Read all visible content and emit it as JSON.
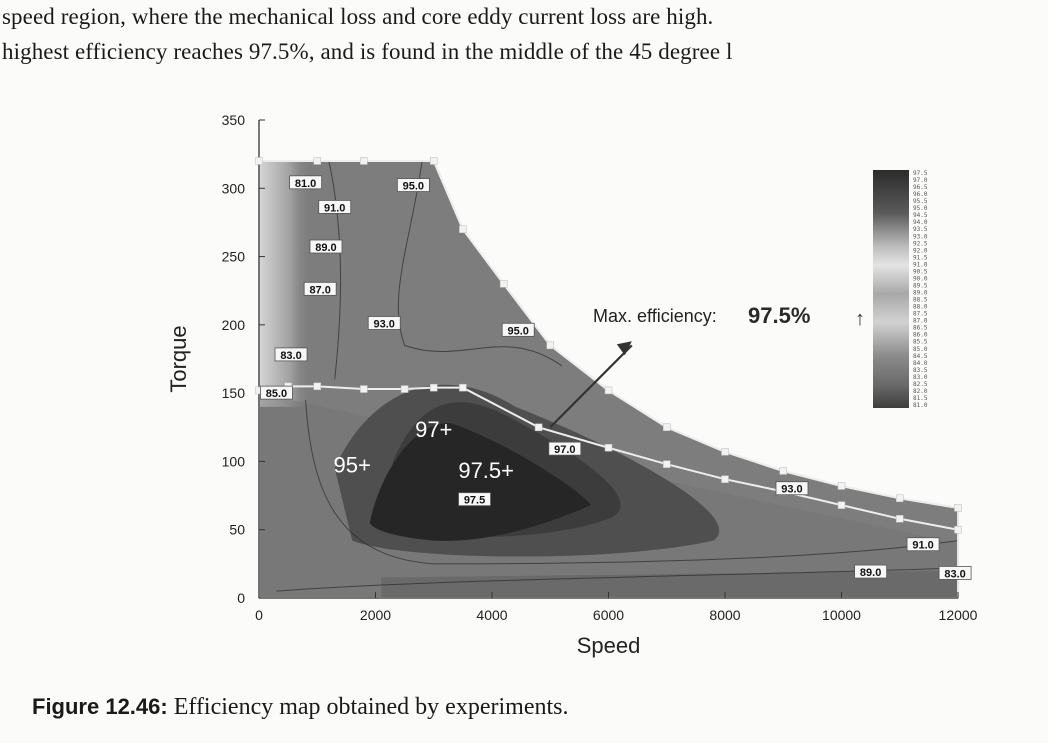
{
  "text": {
    "line1": "speed region, where the mechanical loss and core eddy current loss are high.",
    "line2": "highest efficiency reaches 97.5%, and is found in the middle of the 45 degree l"
  },
  "caption": {
    "label": "Figure 12.46:",
    "text": " Efficiency map obtained by experiments."
  },
  "chart_data": {
    "type": "heatmap",
    "title": "",
    "xlabel": "Speed",
    "ylabel": "Torque",
    "xlim": [
      0,
      12000
    ],
    "ylim": [
      0,
      350
    ],
    "xticks": [
      0,
      2000,
      4000,
      6000,
      8000,
      10000,
      12000
    ],
    "yticks": [
      0,
      50,
      100,
      150,
      200,
      250,
      300,
      350
    ],
    "max_torque_envelope": [
      [
        0,
        320
      ],
      [
        1000,
        320
      ],
      [
        1800,
        320
      ],
      [
        3000,
        320
      ],
      [
        3500,
        270
      ],
      [
        4200,
        230
      ],
      [
        5000,
        185
      ],
      [
        6000,
        152
      ],
      [
        7000,
        125
      ],
      [
        8000,
        107
      ],
      [
        9000,
        93
      ],
      [
        10000,
        82
      ],
      [
        11000,
        73
      ],
      [
        12000,
        66
      ]
    ],
    "loaded_curve": [
      [
        0,
        152
      ],
      [
        500,
        155
      ],
      [
        1000,
        155
      ],
      [
        1800,
        153
      ],
      [
        2500,
        153
      ],
      [
        3000,
        154
      ],
      [
        3500,
        154
      ],
      [
        4800,
        125
      ],
      [
        6000,
        110
      ],
      [
        7000,
        98
      ],
      [
        8000,
        87
      ],
      [
        9000,
        78
      ],
      [
        10000,
        68
      ],
      [
        11000,
        58
      ],
      [
        12000,
        50
      ]
    ],
    "contour_labels": [
      {
        "text": "81.0",
        "x": 800,
        "y": 304
      },
      {
        "text": "95.0",
        "x": 2650,
        "y": 302
      },
      {
        "text": "91.0",
        "x": 1300,
        "y": 286
      },
      {
        "text": "89.0",
        "x": 1150,
        "y": 257
      },
      {
        "text": "87.0",
        "x": 1050,
        "y": 226
      },
      {
        "text": "93.0",
        "x": 2150,
        "y": 201
      },
      {
        "text": "83.0",
        "x": 550,
        "y": 178
      },
      {
        "text": "95.0",
        "x": 4450,
        "y": 196
      },
      {
        "text": "85.0",
        "x": 300,
        "y": 150
      },
      {
        "text": "97.0",
        "x": 5250,
        "y": 109
      },
      {
        "text": "97.5",
        "x": 3700,
        "y": 72
      },
      {
        "text": "93.0",
        "x": 9150,
        "y": 80
      },
      {
        "text": "91.0",
        "x": 11400,
        "y": 39
      },
      {
        "text": "89.0",
        "x": 10500,
        "y": 19
      },
      {
        "text": "83.0",
        "x": 11950,
        "y": 18
      }
    ],
    "annotations": [
      {
        "text": "97+",
        "x": 3000,
        "y": 118
      },
      {
        "text": "95+",
        "x": 1600,
        "y": 92
      },
      {
        "text": "97.5+",
        "x": 3900,
        "y": 88
      }
    ],
    "max_label": "Max. efficiency:",
    "max_value": "97.5%",
    "max_arrow_symbol": "↑",
    "colorbar_labels": [
      "97.5",
      "97.0",
      "96.5",
      "96.0",
      "95.5",
      "95.0",
      "94.5",
      "94.0",
      "93.5",
      "93.0",
      "92.5",
      "92.0",
      "91.5",
      "91.0",
      "90.5",
      "90.0",
      "89.5",
      "89.0",
      "88.5",
      "88.0",
      "87.5",
      "87.0",
      "86.5",
      "86.0",
      "85.5",
      "85.0",
      "84.5",
      "84.0",
      "83.5",
      "83.0",
      "82.5",
      "82.0",
      "81.5",
      "81.0"
    ],
    "grid": false,
    "legend": "colorbar-right"
  }
}
